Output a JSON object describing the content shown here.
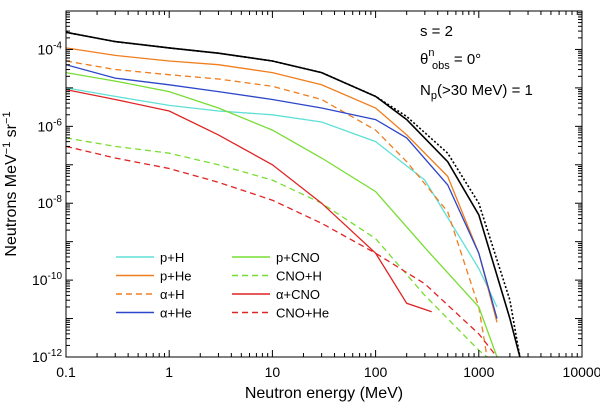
{
  "chart_data": {
    "type": "line",
    "xscale": "log",
    "yscale": "log",
    "xlim": [
      0.1,
      10000
    ],
    "ylim": [
      1e-12,
      0.001
    ],
    "xlabel_main": "Neutron energy (MeV)",
    "ylabel_main": "Neutrons MeV",
    "ylabel_exp": "−1",
    "ylabel_sr": " sr",
    "ylabel_exp2": "−1",
    "x_ticks": [
      {
        "v": 0.1,
        "label": "0.1"
      },
      {
        "v": 1,
        "label": "1"
      },
      {
        "v": 10,
        "label": "10"
      },
      {
        "v": 100,
        "label": "100"
      },
      {
        "v": 1000,
        "label": "1000"
      },
      {
        "v": 10000,
        "label": "10000"
      }
    ],
    "y_ticks": [
      {
        "v": 0.0001,
        "base": "10",
        "exp": "-4"
      },
      {
        "v": 1e-06,
        "base": "10",
        "exp": "-6"
      },
      {
        "v": 1e-08,
        "base": "10",
        "exp": "-8"
      },
      {
        "v": 1e-10,
        "base": "10",
        "exp": "-10"
      },
      {
        "v": 1e-12,
        "base": "10",
        "exp": "-12"
      }
    ],
    "annotations": {
      "s": "s = 2",
      "theta_sym": "θ",
      "theta_sup": "n",
      "theta_sub": "obs",
      "theta_rest": " = 0°",
      "np_N": "N",
      "np_sub": "p",
      "np_rest": "(>30 MeV) = 1"
    },
    "series": [
      {
        "name": "p+H",
        "color": "#5fe0d6",
        "dash": "solid",
        "x": [
          0.1,
          0.3,
          1,
          3,
          10,
          30,
          100,
          300,
          1000,
          1500
        ],
        "y": [
          1e-05,
          6e-06,
          3.5e-06,
          2.5e-06,
          2e-06,
          1.3e-06,
          4e-07,
          4e-08,
          2e-10,
          2e-11
        ]
      },
      {
        "name": "p+He",
        "color": "#f07d1e",
        "dash": "solid",
        "x": [
          0.1,
          0.3,
          1,
          3,
          10,
          30,
          100,
          200,
          500,
          1000,
          1500
        ],
        "y": [
          0.00011,
          7e-05,
          5e-05,
          4e-05,
          2.5e-05,
          1.2e-05,
          3e-06,
          6e-07,
          5e-08,
          5e-10,
          8e-12
        ]
      },
      {
        "name": "α+H",
        "color": "#f07d1e",
        "dash": "dashed",
        "x": [
          0.1,
          0.3,
          1,
          3,
          10,
          30,
          100,
          200,
          500,
          1000,
          1200
        ],
        "y": [
          5e-05,
          3e-05,
          2.2e-05,
          1.7e-05,
          1.1e-05,
          5e-06,
          8e-07,
          1.2e-07,
          6e-09,
          2e-11,
          1e-12
        ]
      },
      {
        "name": "α+He",
        "color": "#2c47c9",
        "dash": "solid",
        "x": [
          0.1,
          0.3,
          1,
          3,
          10,
          30,
          100,
          200,
          500,
          1000,
          1500
        ],
        "y": [
          4e-05,
          1.8e-05,
          1.2e-05,
          8e-06,
          5e-06,
          3e-06,
          1.5e-06,
          5e-07,
          3e-08,
          5e-10,
          1e-11
        ]
      },
      {
        "name": "p+CNO",
        "color": "#77dd33",
        "dash": "solid",
        "x": [
          0.1,
          0.3,
          1,
          3,
          10,
          30,
          100,
          300,
          1000,
          1500
        ],
        "y": [
          2.5e-05,
          1.5e-05,
          8e-06,
          3e-06,
          8e-07,
          1.5e-07,
          2e-08,
          7e-10,
          2e-11,
          1e-12
        ]
      },
      {
        "name": "CNO+H",
        "color": "#77dd33",
        "dash": "dashed",
        "x": [
          0.1,
          0.3,
          1,
          3,
          10,
          30,
          100,
          300,
          1000,
          1200
        ],
        "y": [
          5e-07,
          3e-07,
          2e-07,
          1e-07,
          4e-08,
          1e-08,
          1.2e-09,
          4e-11,
          1.5e-12,
          1e-12
        ]
      },
      {
        "name": "α+CNO",
        "color": "#e02424",
        "dash": "solid",
        "x": [
          0.1,
          0.3,
          1,
          3,
          10,
          30,
          100,
          200,
          350
        ],
        "y": [
          9e-06,
          5e-06,
          2.5e-06,
          6e-07,
          1e-07,
          1e-08,
          5e-10,
          2.5e-11,
          1.5e-11
        ]
      },
      {
        "name": "CNO+He",
        "color": "#e02424",
        "dash": "dashed",
        "x": [
          0.1,
          0.3,
          1,
          3,
          10,
          30,
          100,
          300,
          1000,
          1500
        ],
        "y": [
          3e-07,
          1.5e-07,
          8e-08,
          3.5e-08,
          1.2e-08,
          3e-09,
          5e-10,
          8e-11,
          4e-12,
          1e-12
        ]
      },
      {
        "name": "total",
        "color": "#000000",
        "dash": "solid",
        "in_legend": false,
        "x": [
          0.1,
          0.3,
          1,
          3,
          10,
          30,
          100,
          200,
          500,
          1000,
          2000,
          2500
        ],
        "y": [
          0.00028,
          0.00016,
          0.00011,
          8e-05,
          5e-05,
          2.5e-05,
          6e-06,
          1.5e-06,
          1.2e-07,
          5e-09,
          1e-11,
          1e-12
        ]
      },
      {
        "name": "total-dotted",
        "color": "#000000",
        "dash": "dotted",
        "in_legend": false,
        "x": [
          0.1,
          0.3,
          1,
          3,
          10,
          30,
          100,
          200,
          500,
          1000,
          2000,
          2500
        ],
        "y": [
          0.00028,
          0.00016,
          0.00011,
          8e-05,
          5e-05,
          2.5e-05,
          6e-06,
          1.8e-06,
          2e-07,
          1e-08,
          3e-11,
          1e-12
        ]
      }
    ],
    "legend": {
      "placement": "lower-left",
      "columns": [
        [
          "p+H",
          "p+He",
          "α+H",
          "α+He"
        ],
        [
          "p+CNO",
          "CNO+H",
          "α+CNO",
          "CNO+He"
        ]
      ]
    }
  }
}
